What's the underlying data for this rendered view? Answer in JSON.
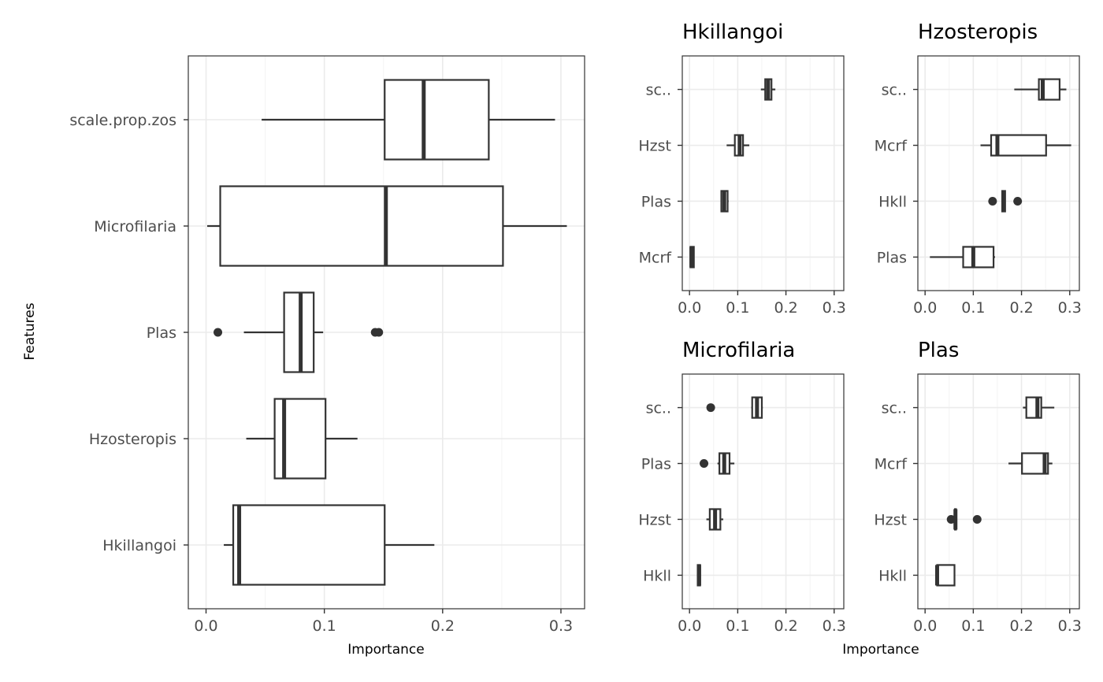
{
  "colors": {
    "ink": "#333333",
    "grid": "#ebebeb",
    "tick_text": "#4d4d4d"
  },
  "chart_data": [
    {
      "id": "main",
      "type": "boxplot",
      "orientation": "horizontal",
      "title": "",
      "xlabel": "Importance",
      "ylabel": "Features",
      "xlim": [
        -0.015,
        0.32
      ],
      "xticks": [
        0.0,
        0.1,
        0.2,
        0.3
      ],
      "xtick_labels": [
        "0.0",
        "0.1",
        "0.2",
        "0.3"
      ],
      "categories": [
        "scale.prop.zos",
        "Microfilaria",
        "Plas",
        "Hzosteropis",
        "Hkillangoi"
      ],
      "boxes": [
        {
          "category": "scale.prop.zos",
          "whisker_low": 0.047,
          "q1": 0.151,
          "median": 0.184,
          "q3": 0.239,
          "whisker_high": 0.295,
          "outliers": []
        },
        {
          "category": "Microfilaria",
          "whisker_low": 0.001,
          "q1": 0.012,
          "median": 0.152,
          "q3": 0.251,
          "whisker_high": 0.305,
          "outliers": []
        },
        {
          "category": "Plas",
          "whisker_low": 0.032,
          "q1": 0.066,
          "median": 0.08,
          "q3": 0.091,
          "whisker_high": 0.099,
          "outliers": [
            0.01,
            0.143,
            0.146
          ]
        },
        {
          "category": "Hzosteropis",
          "whisker_low": 0.034,
          "q1": 0.058,
          "median": 0.066,
          "q3": 0.101,
          "whisker_high": 0.128,
          "outliers": []
        },
        {
          "category": "Hkillangoi",
          "whisker_low": 0.015,
          "q1": 0.023,
          "median": 0.028,
          "q3": 0.151,
          "whisker_high": 0.193,
          "outliers": []
        }
      ]
    },
    {
      "id": "hkillangoi",
      "type": "boxplot",
      "orientation": "horizontal",
      "title": "Hkillangoi",
      "xlim": [
        -0.015,
        0.32
      ],
      "xticks": [
        0.0,
        0.1,
        0.2,
        0.3
      ],
      "xtick_labels": [
        "0.0",
        "0.1",
        "0.2",
        "0.3"
      ],
      "categories": [
        "sc..",
        "Hzst",
        "Plas",
        "Mcrf"
      ],
      "boxes": [
        {
          "category": "sc..",
          "whisker_low": 0.148,
          "q1": 0.157,
          "median": 0.163,
          "q3": 0.17,
          "whisker_high": 0.178,
          "outliers": []
        },
        {
          "category": "Hzst",
          "whisker_low": 0.077,
          "q1": 0.094,
          "median": 0.104,
          "q3": 0.111,
          "whisker_high": 0.124,
          "outliers": []
        },
        {
          "category": "Plas",
          "whisker_low": 0.066,
          "q1": 0.066,
          "median": 0.072,
          "q3": 0.079,
          "whisker_high": 0.081,
          "outliers": []
        },
        {
          "category": "Mcrf",
          "whisker_low": 0.001,
          "q1": 0.002,
          "median": 0.004,
          "q3": 0.009,
          "whisker_high": 0.01,
          "outliers": []
        }
      ]
    },
    {
      "id": "hzosteropis",
      "type": "boxplot",
      "orientation": "horizontal",
      "title": "Hzosteropis",
      "xlim": [
        -0.015,
        0.32
      ],
      "xticks": [
        0.0,
        0.1,
        0.2,
        0.3
      ],
      "xtick_labels": [
        "0.0",
        "0.1",
        "0.2",
        "0.3"
      ],
      "categories": [
        "sc..",
        "Mcrf",
        "Hkll",
        "Plas"
      ],
      "boxes": [
        {
          "category": "sc..",
          "whisker_low": 0.185,
          "q1": 0.236,
          "median": 0.244,
          "q3": 0.279,
          "whisker_high": 0.293,
          "outliers": []
        },
        {
          "category": "Mcrf",
          "whisker_low": 0.115,
          "q1": 0.137,
          "median": 0.15,
          "q3": 0.251,
          "whisker_high": 0.303,
          "outliers": []
        },
        {
          "category": "Hkll",
          "whisker_low": 0.16,
          "q1": 0.16,
          "median": 0.163,
          "q3": 0.166,
          "whisker_high": 0.166,
          "outliers": [
            0.14,
            0.192
          ]
        },
        {
          "category": "Plas",
          "whisker_low": 0.01,
          "q1": 0.079,
          "median": 0.1,
          "q3": 0.142,
          "whisker_high": 0.145,
          "outliers": []
        }
      ]
    },
    {
      "id": "microfilaria",
      "type": "boxplot",
      "orientation": "horizontal",
      "title": "Microfilaria",
      "xlabel": "",
      "xlim": [
        -0.015,
        0.32
      ],
      "xticks": [
        0.0,
        0.1,
        0.2,
        0.3
      ],
      "xtick_labels": [
        "0.0",
        "0.1",
        "0.2",
        "0.3"
      ],
      "categories": [
        "sc..",
        "Plas",
        "Hzst",
        "Hkll"
      ],
      "boxes": [
        {
          "category": "sc..",
          "whisker_low": 0.128,
          "q1": 0.13,
          "median": 0.14,
          "q3": 0.15,
          "whisker_high": 0.152,
          "outliers": [
            0.044
          ]
        },
        {
          "category": "Plas",
          "whisker_low": 0.058,
          "q1": 0.062,
          "median": 0.072,
          "q3": 0.083,
          "whisker_high": 0.093,
          "outliers": [
            0.03
          ]
        },
        {
          "category": "Hzst",
          "whisker_low": 0.035,
          "q1": 0.042,
          "median": 0.053,
          "q3": 0.064,
          "whisker_high": 0.07,
          "outliers": []
        },
        {
          "category": "Hkll",
          "whisker_low": 0.017,
          "q1": 0.017,
          "median": 0.02,
          "q3": 0.022,
          "whisker_high": 0.022,
          "outliers": []
        }
      ]
    },
    {
      "id": "plas",
      "type": "boxplot",
      "orientation": "horizontal",
      "title": "Plas",
      "xlim": [
        -0.015,
        0.32
      ],
      "xticks": [
        0.0,
        0.1,
        0.2,
        0.3
      ],
      "xtick_labels": [
        "0.0",
        "0.1",
        "0.2",
        "0.3"
      ],
      "categories": [
        "sc..",
        "Mcrf",
        "Hzst",
        "Hkll"
      ],
      "boxes": [
        {
          "category": "sc..",
          "whisker_low": 0.203,
          "q1": 0.21,
          "median": 0.233,
          "q3": 0.241,
          "whisker_high": 0.268,
          "outliers": []
        },
        {
          "category": "Mcrf",
          "whisker_low": 0.173,
          "q1": 0.201,
          "median": 0.248,
          "q3": 0.255,
          "whisker_high": 0.264,
          "outliers": []
        },
        {
          "category": "Hzst",
          "whisker_low": 0.062,
          "q1": 0.062,
          "median": 0.063,
          "q3": 0.064,
          "whisker_high": 0.064,
          "outliers": [
            0.054,
            0.108
          ]
        },
        {
          "category": "Hkll",
          "whisker_low": 0.025,
          "q1": 0.025,
          "median": 0.025,
          "q3": 0.061,
          "whisker_high": 0.061,
          "outliers": []
        }
      ]
    }
  ],
  "shared_xlabel": "Importance"
}
